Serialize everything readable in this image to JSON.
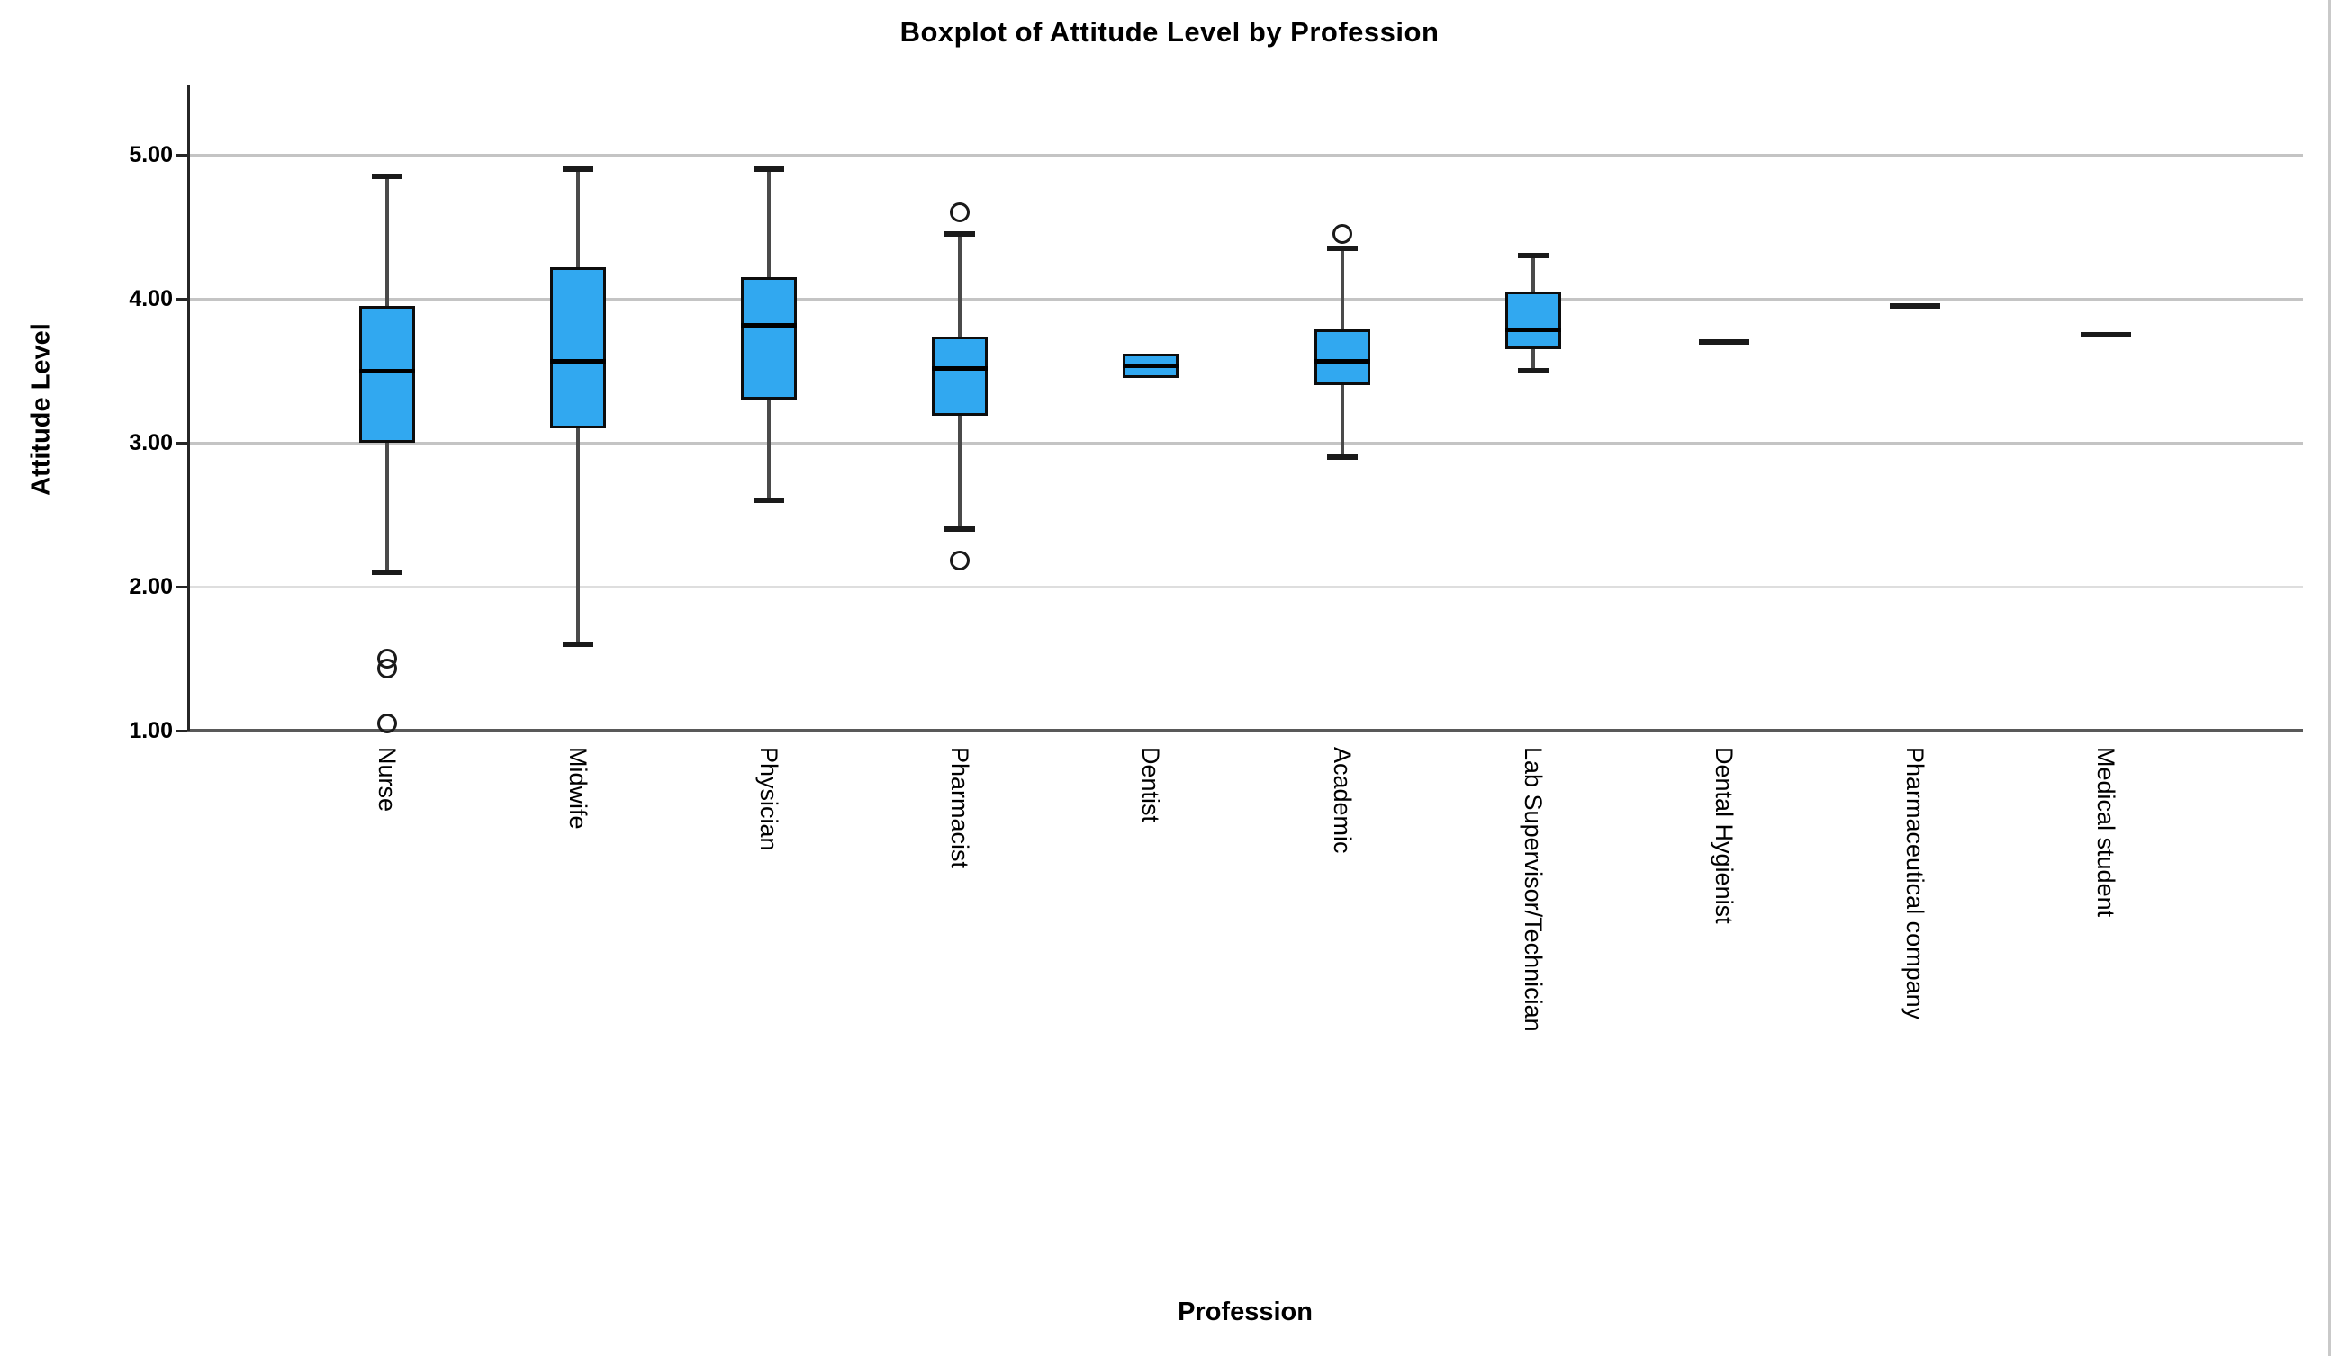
{
  "chart_data": {
    "type": "boxplot",
    "title": "Boxplot of Attitude Level by Profession",
    "xlabel": "Profession",
    "ylabel": "Attitude Level",
    "ylim": [
      1.0,
      5.0
    ],
    "grid": "horizontal",
    "legend": "none",
    "yticks": [
      {
        "value": 5,
        "label": "5.00"
      },
      {
        "value": 4,
        "label": "4.00"
      },
      {
        "value": 3,
        "label": "3.00"
      },
      {
        "value": 2,
        "label": "2.00"
      },
      {
        "value": 1,
        "label": "1.00"
      }
    ],
    "categories": [
      "Nurse",
      "Midwife",
      "Physician",
      "Pharmacist",
      "Dentist",
      "Academic",
      "Lab Supervisor/Technician",
      "Dental Hygienist",
      "Pharmaceutical company",
      "Medical student"
    ],
    "series": [
      {
        "category": "Nurse",
        "whisker_low": 2.1,
        "q1": 3.0,
        "median": 3.5,
        "q3": 3.95,
        "whisker_high": 4.85,
        "outliers": [
          1.5,
          1.43,
          1.05
        ]
      },
      {
        "category": "Midwife",
        "whisker_low": 1.6,
        "q1": 3.1,
        "median": 3.57,
        "q3": 4.22,
        "whisker_high": 4.9,
        "outliers": []
      },
      {
        "category": "Physician",
        "whisker_low": 2.6,
        "q1": 3.3,
        "median": 3.82,
        "q3": 4.15,
        "whisker_high": 4.9,
        "outliers": []
      },
      {
        "category": "Pharmacist",
        "whisker_low": 2.4,
        "q1": 3.19,
        "median": 3.52,
        "q3": 3.74,
        "whisker_high": 4.45,
        "outliers": [
          4.6,
          2.18
        ]
      },
      {
        "category": "Dentist",
        "whisker_low": null,
        "q1": 3.45,
        "median": 3.54,
        "q3": 3.62,
        "whisker_high": null,
        "outliers": []
      },
      {
        "category": "Academic",
        "whisker_low": 2.9,
        "q1": 3.4,
        "median": 3.57,
        "q3": 3.79,
        "whisker_high": 4.35,
        "outliers": [
          4.45
        ]
      },
      {
        "category": "Lab Supervisor/Technician",
        "whisker_low": 3.5,
        "q1": 3.65,
        "median": 3.79,
        "q3": 4.05,
        "whisker_high": 4.3,
        "outliers": []
      },
      {
        "category": "Dental Hygienist",
        "single_value": 3.7,
        "outliers": []
      },
      {
        "category": "Pharmaceutical company",
        "single_value": 3.95,
        "outliers": []
      },
      {
        "category": "Medical student",
        "single_value": 3.75,
        "outliers": []
      }
    ],
    "colors": {
      "box_fill": "#31A8F0",
      "box_border": "#0d0d0d",
      "median": "#000000",
      "whisker_stem": "#4a4a4a",
      "whisker_cap": "#1a1a1a",
      "gridline": "#c4c4c4",
      "gridline_light": "#dedede",
      "axis_line": "#595959",
      "spine": "#262626",
      "outlier": "#1a1a1a",
      "frame": "#c9c9c9",
      "text": "#000000",
      "background": "#ffffff"
    }
  }
}
